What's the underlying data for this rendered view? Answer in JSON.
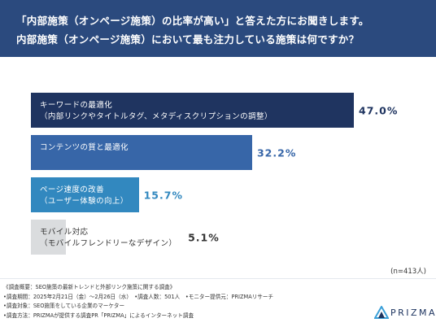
{
  "header": {
    "line1": "「内部施策（オンページ施策）の比率が高い」と答えた方にお聞きします。",
    "line2": "内部施策（オンページ施策）において最も注力している施策は何ですか？"
  },
  "chart_data": {
    "type": "bar",
    "orientation": "horizontal",
    "categories": [
      [
        "キーワードの最適化",
        "（内部リンクやタイトルタグ、メタディスクリプションの調整）"
      ],
      [
        "コンテンツの質と最適化"
      ],
      [
        "ページ速度の改善",
        "（ユーザー体験の向上）"
      ],
      [
        "モバイル対応",
        "（モバイルフレンドリーなデザイン）"
      ]
    ],
    "values": [
      47.0,
      32.2,
      15.7,
      5.1
    ],
    "value_labels": [
      "47.0%",
      "32.2%",
      "15.7%",
      "5.1%"
    ],
    "colors": [
      "#1f3460",
      "#3766a8",
      "#3288bf",
      "#dadcde"
    ],
    "label_colors": [
      "#ffffff",
      "#ffffff",
      "#ffffff",
      "#333333"
    ],
    "value_colors": [
      "#1f3460",
      "#3766a8",
      "#3288bf",
      "#333333"
    ],
    "n_note": "(n=413人)"
  },
  "footer": {
    "lines": [
      "《調査概要：SEO施策の最新トレンドと外部リンク施策に関する調査》",
      "•調査期間：2025年2月21日（金）〜2月26日（水）　•調査人数：501人　•モニター提供元：PRIZMAリサーチ",
      "•調査対象：SEO施策をしている企業のマーケター",
      "•調査方法：PRIZMAが提供する調査PR「PRIZMA」によるインターネット調査"
    ]
  },
  "logo": {
    "text": "PRIZMA"
  }
}
